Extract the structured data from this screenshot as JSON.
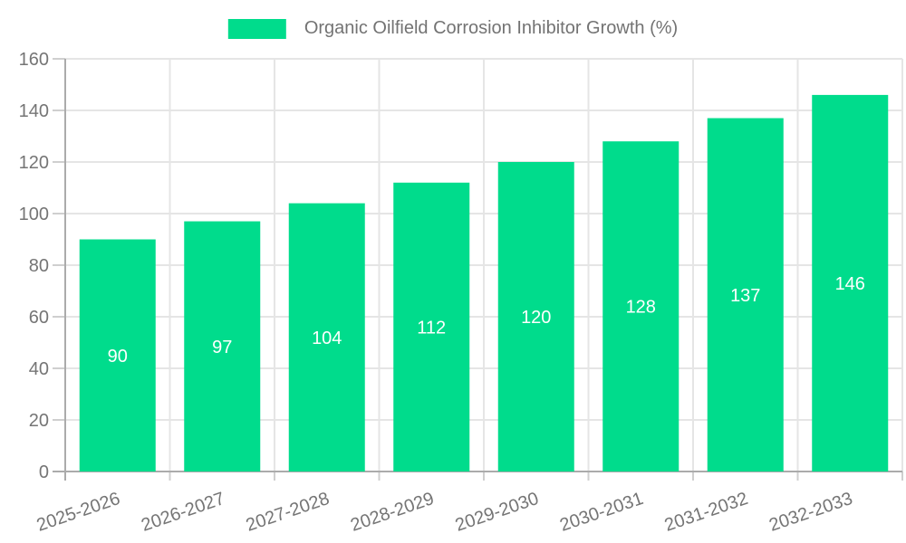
{
  "chart_data": {
    "type": "bar",
    "title": "Organic Oilfield Corrosion Inhibitor Growth (%)",
    "categories": [
      "2025-2026",
      "2026-2027",
      "2027-2028",
      "2028-2029",
      "2029-2030",
      "2030-2031",
      "2031-2032",
      "2032-2033"
    ],
    "values": [
      90,
      97,
      104,
      112,
      120,
      128,
      137,
      146
    ],
    "xlabel": "",
    "ylabel": "",
    "ylim": [
      0,
      160
    ],
    "yticks": [
      0,
      20,
      40,
      60,
      80,
      100,
      120,
      140,
      160
    ],
    "grid": true,
    "legend_position": "top-center",
    "value_labels_inside_bars": true,
    "x_label_rotation_deg": -19
  },
  "colors": {
    "bar": "#00DC8C",
    "value_label": "#ffffff",
    "grid": "#e5e5e5",
    "axis": "#ababab",
    "tick": "#cfcfcf",
    "tick_label": "#757575",
    "legend_text": "#737373",
    "background": "#ffffff"
  }
}
